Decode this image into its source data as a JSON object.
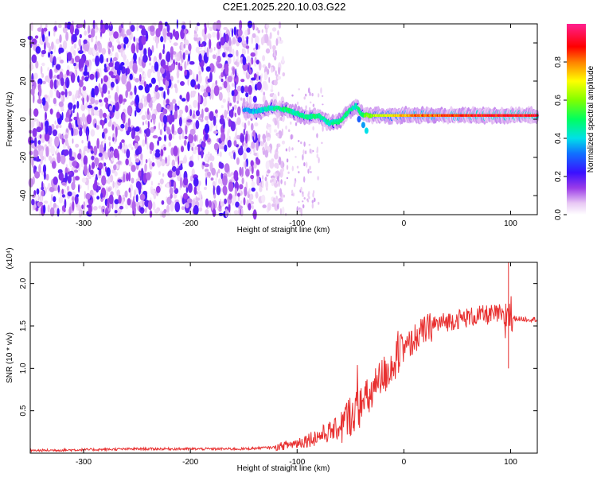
{
  "title": "C2E1.2025.220.10.03.G22",
  "chart_data": [
    {
      "type": "heatmap",
      "xlabel": "Height of straight line (km)",
      "ylabel": "Frequency (Hz)",
      "xlim": [
        -350,
        125
      ],
      "ylim": [
        -50,
        50
      ],
      "xticks": [
        -300,
        -200,
        -100,
        0,
        100
      ],
      "yticks": [
        -40,
        -20,
        0,
        20,
        40
      ],
      "colorbar": {
        "label": "Normalized spectral amplitude",
        "range": [
          0,
          1
        ],
        "ticks": [
          0.0,
          0.2,
          0.4,
          0.6,
          0.8
        ],
        "colormap": "white-purple-blue-cyan-green-yellow-red-magenta"
      },
      "noise_region_x": [
        -350,
        -120
      ],
      "signal_track": [
        {
          "x": -150,
          "y": 5,
          "amp": 0.35
        },
        {
          "x": -140,
          "y": 4,
          "amp": 0.4
        },
        {
          "x": -125,
          "y": 6,
          "amp": 0.45
        },
        {
          "x": -110,
          "y": 5,
          "amp": 0.5
        },
        {
          "x": -100,
          "y": 3,
          "amp": 0.45
        },
        {
          "x": -90,
          "y": 1,
          "amp": 0.5
        },
        {
          "x": -80,
          "y": 2,
          "amp": 0.5
        },
        {
          "x": -70,
          "y": -2,
          "amp": 0.45
        },
        {
          "x": -60,
          "y": -1,
          "amp": 0.5
        },
        {
          "x": -50,
          "y": 5,
          "amp": 0.5
        },
        {
          "x": -45,
          "y": 7,
          "amp": 0.45
        },
        {
          "x": -40,
          "y": 3,
          "amp": 0.5
        },
        {
          "x": -35,
          "y": 2,
          "amp": 0.6
        },
        {
          "x": -25,
          "y": 2,
          "amp": 0.7
        },
        {
          "x": -10,
          "y": 2,
          "amp": 0.75
        },
        {
          "x": 0,
          "y": 2,
          "amp": 0.8
        },
        {
          "x": 20,
          "y": 2,
          "amp": 0.85
        },
        {
          "x": 50,
          "y": 2,
          "amp": 0.9
        },
        {
          "x": 80,
          "y": 2,
          "amp": 0.95
        },
        {
          "x": 100,
          "y": 2,
          "amp": 0.95
        },
        {
          "x": 125,
          "y": 2,
          "amp": 0.95
        }
      ],
      "branch": [
        {
          "x": -42,
          "y": 0
        },
        {
          "x": -38,
          "y": -3
        },
        {
          "x": -35,
          "y": -6
        }
      ]
    },
    {
      "type": "line",
      "xlabel": "Height of straight line (km)",
      "ylabel": "SNR (10 * v/v)",
      "y_multiplier": "(x10⁴)",
      "xlim": [
        -350,
        125
      ],
      "ylim": [
        0,
        2.25
      ],
      "xticks": [
        -300,
        -200,
        -100,
        0,
        100
      ],
      "yticks": [
        0.5,
        1.0,
        1.5,
        2.0
      ],
      "color": "#e83030",
      "series": [
        {
          "x": [
            -350,
            -300,
            -250,
            -200,
            -150,
            -120,
            -100,
            -80,
            -60,
            -50,
            -40,
            -30,
            -20,
            -10,
            0,
            10,
            20,
            30,
            40,
            50,
            60,
            70,
            80,
            90,
            95,
            98,
            100,
            110,
            125
          ],
          "y": [
            0.03,
            0.04,
            0.05,
            0.05,
            0.05,
            0.07,
            0.12,
            0.2,
            0.3,
            0.45,
            0.55,
            0.7,
            0.9,
            1.05,
            1.2,
            1.35,
            1.45,
            1.52,
            1.55,
            1.58,
            1.6,
            1.62,
            1.63,
            1.64,
            1.55,
            1.75,
            1.6,
            1.58,
            1.58
          ]
        }
      ],
      "spike": {
        "x": 98,
        "y": 2.3
      }
    }
  ]
}
